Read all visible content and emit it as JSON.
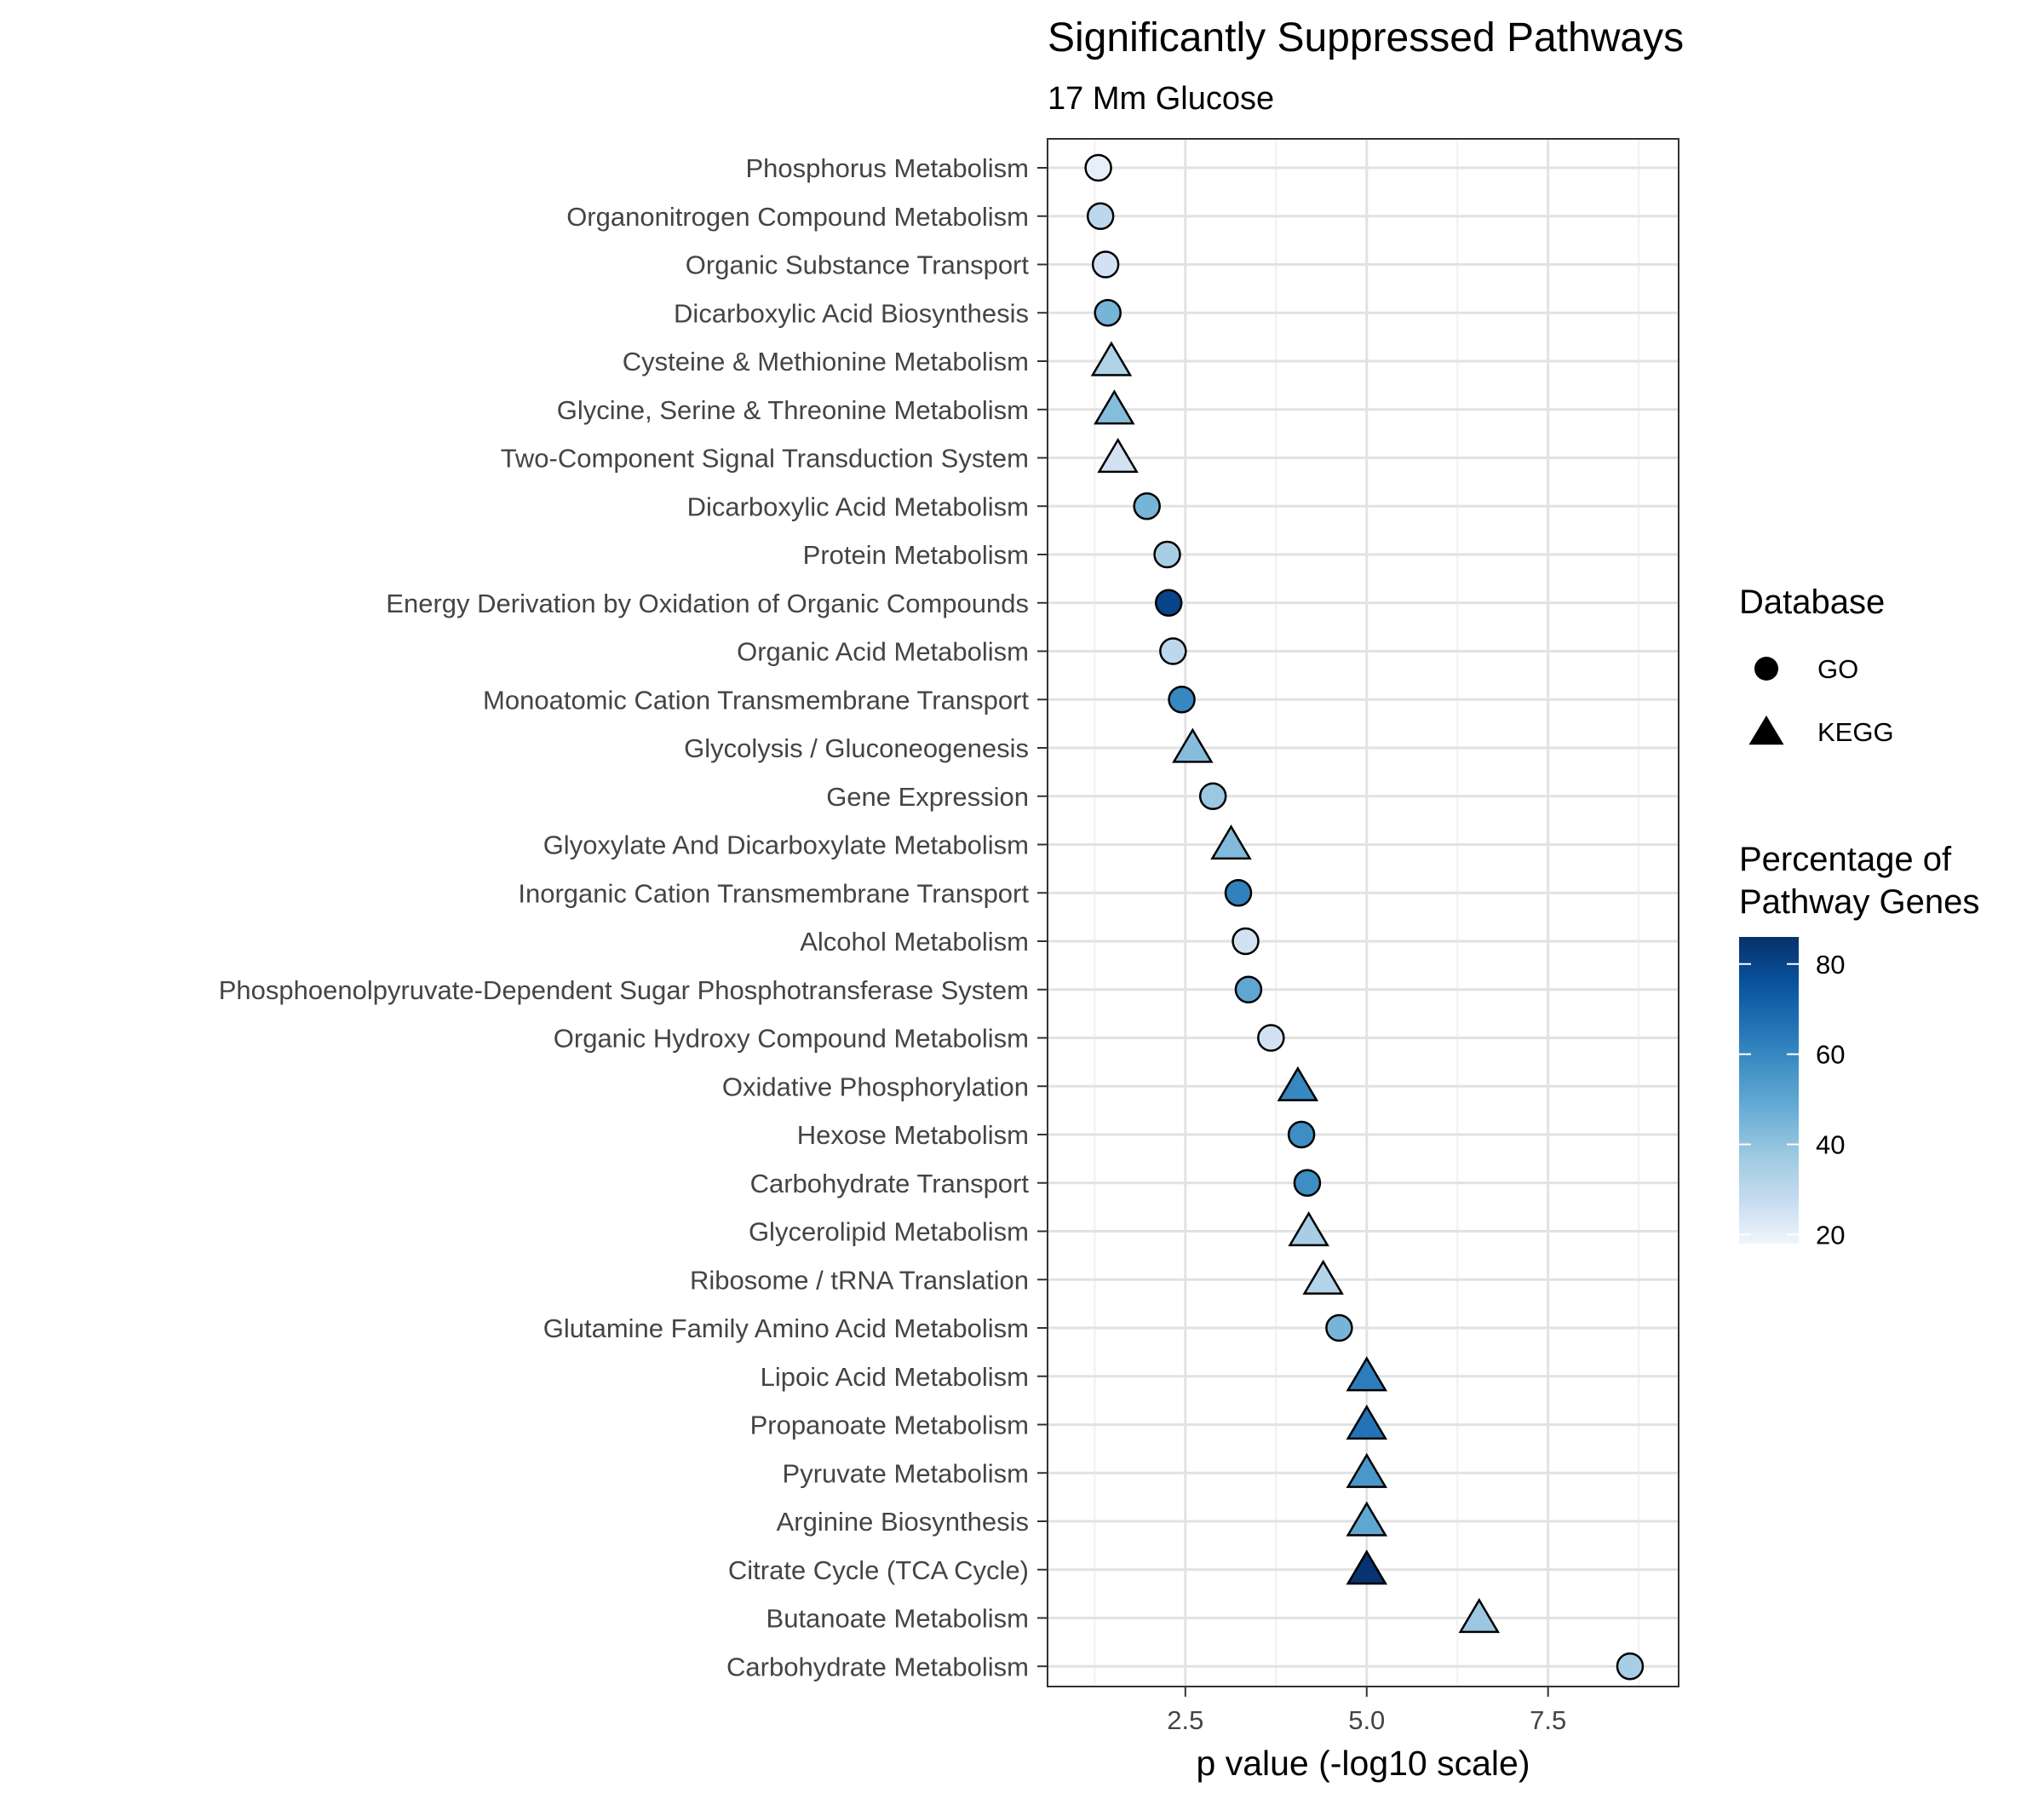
{
  "chart_data": {
    "type": "scatter",
    "title": "Significantly Suppressed Pathways",
    "subtitle": "17 Mm Glucose",
    "xlabel": "p value (-log10 scale)",
    "ylabel": "",
    "xlim": [
      0.6,
      9.3
    ],
    "x_ticks": [
      2.5,
      5.0,
      7.5
    ],
    "x_tick_labels": [
      "2.5",
      "5.0",
      "7.5"
    ],
    "grid": true,
    "legend_placement": "right",
    "shape_legend": {
      "title": "Database",
      "entries": [
        {
          "label": "GO",
          "shape": "circle"
        },
        {
          "label": "KEGG",
          "shape": "triangle"
        }
      ]
    },
    "color_legend": {
      "title": [
        "Percentage of",
        "Pathway Genes"
      ],
      "min": 18,
      "max": 86,
      "ticks": [
        20,
        40,
        60,
        80
      ],
      "tick_labels": [
        "20",
        "40",
        "60",
        "80"
      ],
      "colors": [
        "#f0f5fd",
        "#c6dbef",
        "#9ecae1",
        "#6baed6",
        "#4292c6",
        "#2171b5",
        "#08519c",
        "#08306b"
      ]
    },
    "points": [
      {
        "pathway": "Phosphorus Metabolism",
        "x": 1.3,
        "pct": 20,
        "db": "GO"
      },
      {
        "pathway": "Organonitrogen Compound Metabolism",
        "x": 1.33,
        "pct": 30,
        "db": "GO"
      },
      {
        "pathway": "Organic Substance Transport",
        "x": 1.4,
        "pct": 25,
        "db": "GO"
      },
      {
        "pathway": "Dicarboxylic Acid Biosynthesis",
        "x": 1.43,
        "pct": 45,
        "db": "GO"
      },
      {
        "pathway": "Cysteine & Methionine Metabolism",
        "x": 1.48,
        "pct": 33,
        "db": "KEGG"
      },
      {
        "pathway": "Glycine, Serine & Threonine Metabolism",
        "x": 1.52,
        "pct": 42,
        "db": "KEGG"
      },
      {
        "pathway": "Two-Component Signal Transduction System",
        "x": 1.57,
        "pct": 25,
        "db": "KEGG"
      },
      {
        "pathway": "Dicarboxylic Acid Metabolism",
        "x": 1.97,
        "pct": 45,
        "db": "GO"
      },
      {
        "pathway": "Protein Metabolism",
        "x": 2.25,
        "pct": 35,
        "db": "GO"
      },
      {
        "pathway": "Energy Derivation by Oxidation of Organic Compounds",
        "x": 2.27,
        "pct": 80,
        "db": "GO"
      },
      {
        "pathway": "Organic Acid Metabolism",
        "x": 2.33,
        "pct": 30,
        "db": "GO"
      },
      {
        "pathway": "Monoatomic Cation Transmembrane Transport",
        "x": 2.45,
        "pct": 60,
        "db": "GO"
      },
      {
        "pathway": "Glycolysis / Gluconeogenesis",
        "x": 2.6,
        "pct": 42,
        "db": "KEGG"
      },
      {
        "pathway": "Gene Expression",
        "x": 2.88,
        "pct": 38,
        "db": "GO"
      },
      {
        "pathway": "Glyoxylate And Dicarboxylate Metabolism",
        "x": 3.13,
        "pct": 43,
        "db": "KEGG"
      },
      {
        "pathway": "Inorganic Cation Transmembrane Transport",
        "x": 3.23,
        "pct": 62,
        "db": "GO"
      },
      {
        "pathway": "Alcohol Metabolism",
        "x": 3.33,
        "pct": 25,
        "db": "GO"
      },
      {
        "pathway": "Phosphoenolpyruvate-Dependent Sugar Phosphotransferase System",
        "x": 3.37,
        "pct": 50,
        "db": "GO"
      },
      {
        "pathway": "Organic Hydroxy Compound Metabolism",
        "x": 3.68,
        "pct": 25,
        "db": "GO"
      },
      {
        "pathway": "Oxidative Phosphorylation",
        "x": 4.05,
        "pct": 60,
        "db": "KEGG"
      },
      {
        "pathway": "Hexose Metabolism",
        "x": 4.1,
        "pct": 58,
        "db": "GO"
      },
      {
        "pathway": "Carbohydrate Transport",
        "x": 4.18,
        "pct": 58,
        "db": "GO"
      },
      {
        "pathway": "Glycerolipid Metabolism",
        "x": 4.2,
        "pct": 35,
        "db": "KEGG"
      },
      {
        "pathway": "Ribosome / tRNA Translation",
        "x": 4.4,
        "pct": 32,
        "db": "KEGG"
      },
      {
        "pathway": "Glutamine Family Amino Acid Metabolism",
        "x": 4.62,
        "pct": 45,
        "db": "GO"
      },
      {
        "pathway": "Lipoic Acid Metabolism",
        "x": 5.0,
        "pct": 63,
        "db": "KEGG"
      },
      {
        "pathway": "Propanoate Metabolism",
        "x": 5.0,
        "pct": 66,
        "db": "KEGG"
      },
      {
        "pathway": "Pyruvate Metabolism",
        "x": 5.0,
        "pct": 55,
        "db": "KEGG"
      },
      {
        "pathway": "Arginine Biosynthesis",
        "x": 5.0,
        "pct": 50,
        "db": "KEGG"
      },
      {
        "pathway": "Citrate Cycle (TCA Cycle)",
        "x": 5.0,
        "pct": 85,
        "db": "KEGG"
      },
      {
        "pathway": "Butanoate Metabolism",
        "x": 6.55,
        "pct": 38,
        "db": "KEGG"
      },
      {
        "pathway": "Carbohydrate Metabolism",
        "x": 8.63,
        "pct": 35,
        "db": "GO"
      }
    ]
  }
}
